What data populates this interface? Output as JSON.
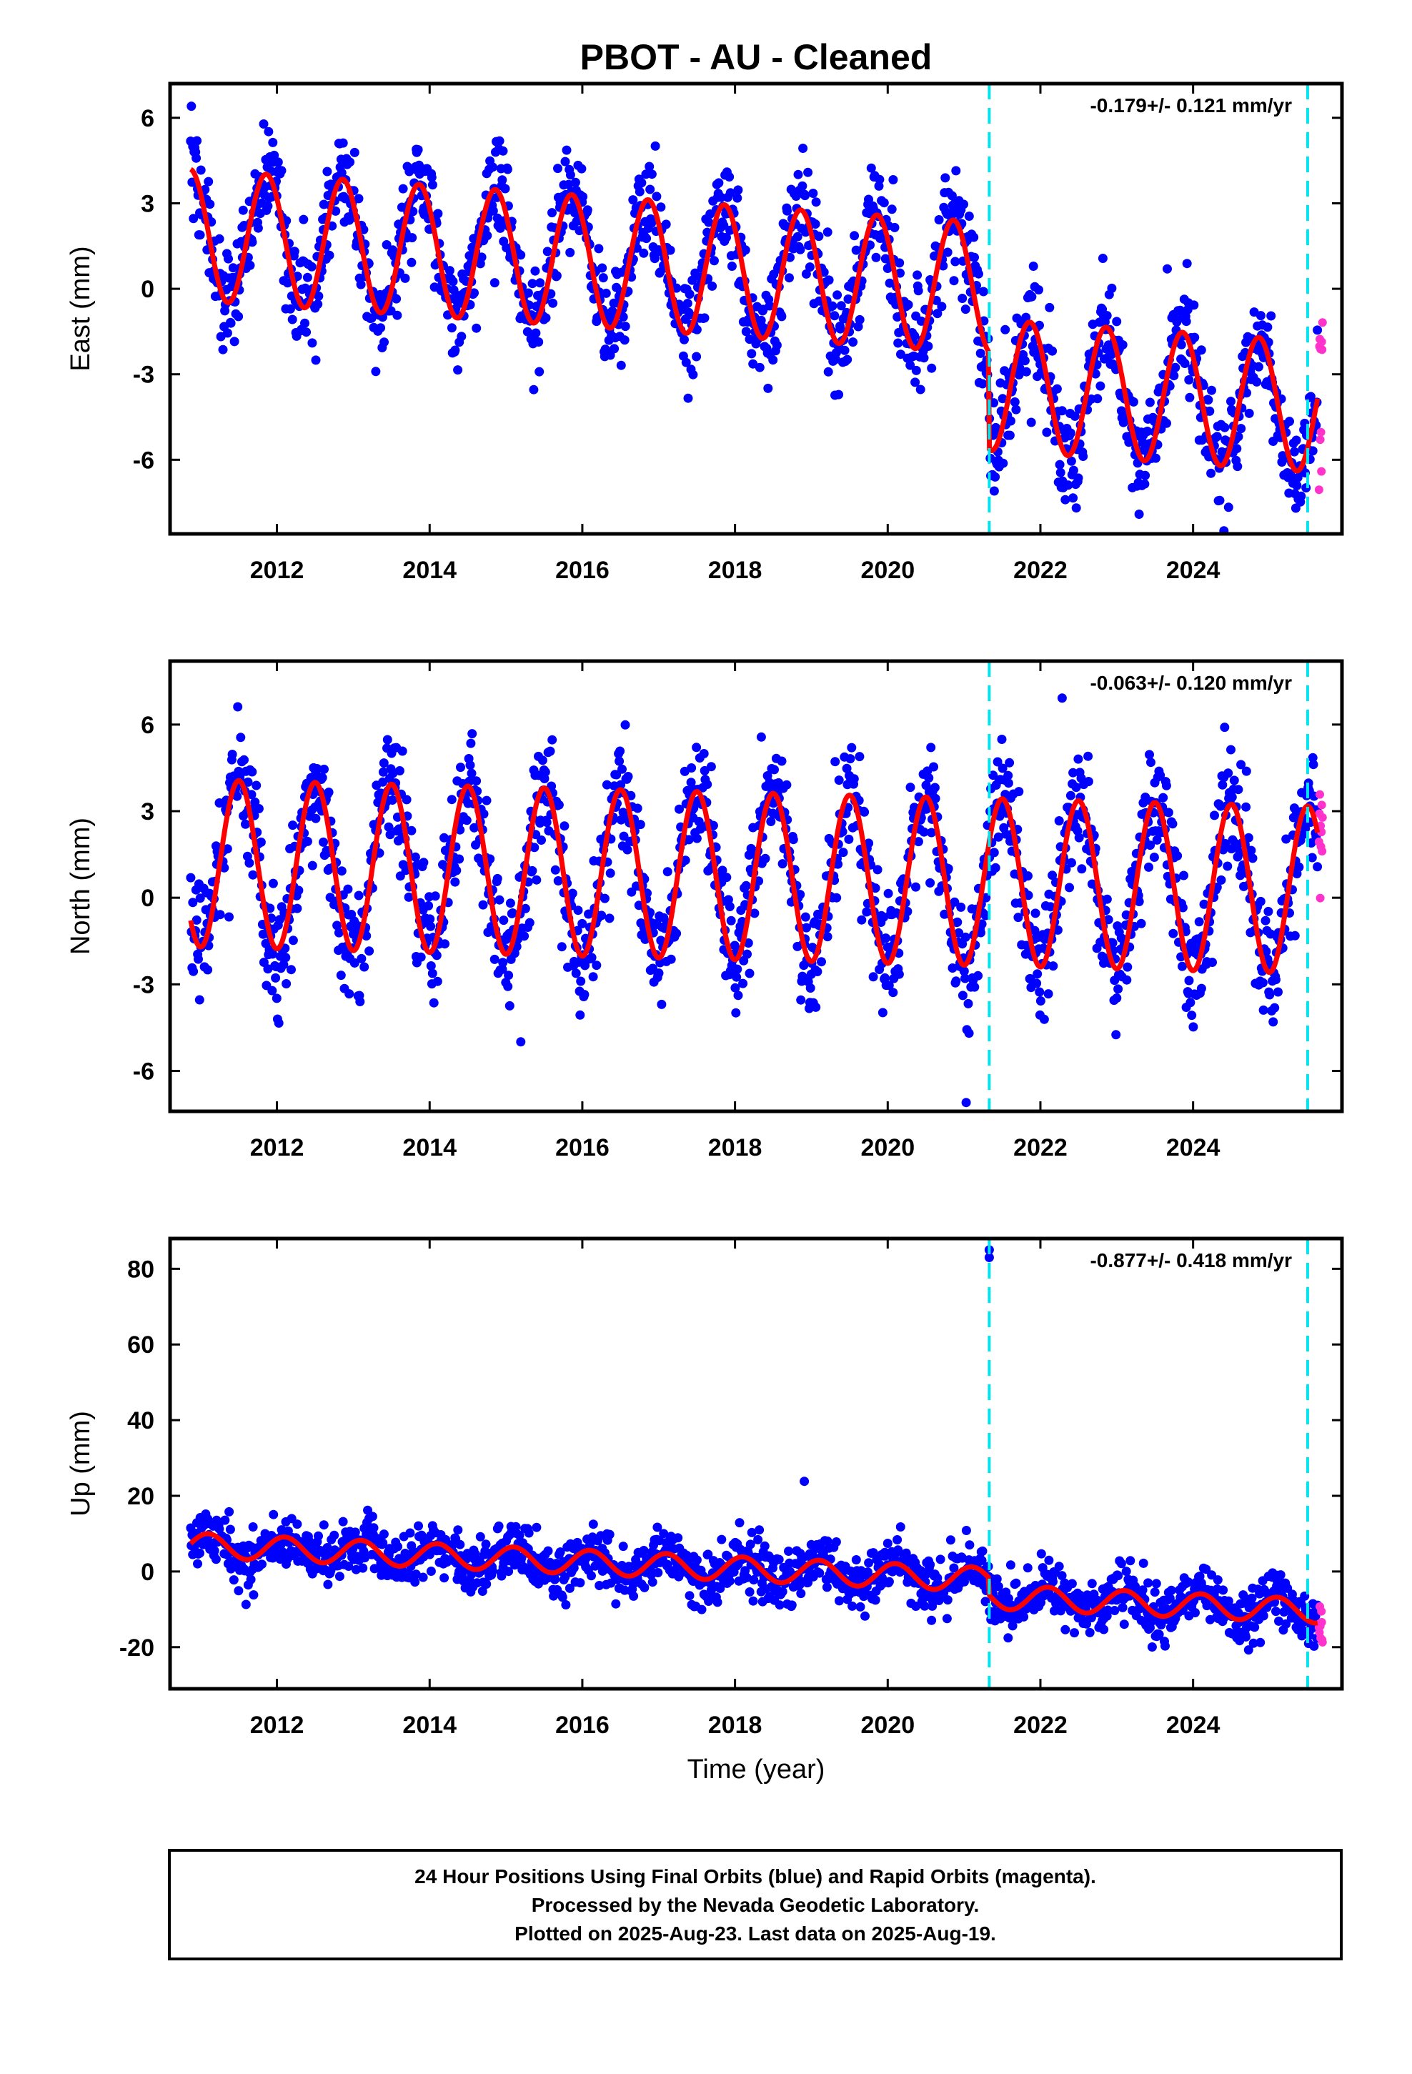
{
  "title": "PBOT  - AU - Cleaned",
  "colors": {
    "final_points": "#0000ff",
    "rapid_points": "#ff33cc",
    "model_line": "#ff0000",
    "offset_lines": "#00e5ee",
    "frame": "#000000"
  },
  "xlabel": "Time (year)",
  "footer": {
    "line1": "24 Hour Positions Using Final Orbits (blue) and Rapid Orbits (magenta).",
    "line2": "Processed by the Nevada Geodetic Laboratory.",
    "line3": "Plotted on 2025-Aug-23. Last data on 2025-Aug-19."
  },
  "chart_data": [
    {
      "type": "scatter",
      "component": "east",
      "ylabel": "East (mm)",
      "rate_text": "-0.179+/- 0.121 mm/yr",
      "xlim": [
        2010.6,
        2025.95
      ],
      "ylim": [
        -8.6,
        7.2
      ],
      "xticks": [
        2012,
        2014,
        2016,
        2018,
        2020,
        2022,
        2024
      ],
      "xtick_labels": [
        "2012",
        "2014",
        "2016",
        "2018",
        "2020",
        "2022",
        "2024"
      ],
      "yticks": [
        -6,
        -3,
        0,
        3,
        6
      ],
      "ytick_labels": [
        "-6",
        "-3",
        "0",
        "3",
        "6"
      ],
      "offset_epochs": [
        2021.33,
        2025.5
      ],
      "model": {
        "start": 2010.87,
        "end": 2025.63,
        "initial_offset": 1.9,
        "rate": -0.179,
        "amplitude": 2.3,
        "peak_phase": 0.86,
        "step_epoch": 2021.33,
        "step_size": -3.4
      },
      "scatter": {
        "final_noise": 0.9,
        "final_count": 1650,
        "rapid_count": 10
      }
    },
    {
      "type": "scatter",
      "component": "north",
      "ylabel": "North (mm)",
      "rate_text": "-0.063+/- 0.120 mm/yr",
      "xlim": [
        2010.6,
        2025.95
      ],
      "ylim": [
        -7.4,
        8.2
      ],
      "xticks": [
        2012,
        2014,
        2016,
        2018,
        2020,
        2022,
        2024
      ],
      "xtick_labels": [
        "2012",
        "2014",
        "2016",
        "2018",
        "2020",
        "2022",
        "2024"
      ],
      "yticks": [
        -6,
        -3,
        0,
        3,
        6
      ],
      "ytick_labels": [
        "-6",
        "-3",
        "0",
        "3",
        "6"
      ],
      "offset_epochs": [
        2021.33,
        2025.5
      ],
      "model": {
        "start": 2010.87,
        "end": 2025.63,
        "initial_offset": 1.2,
        "rate": -0.063,
        "amplitude": 2.9,
        "peak_phase": 0.5,
        "step_epoch": 2021.33,
        "step_size": 0.0
      },
      "scatter": {
        "final_noise": 1.0,
        "final_count": 1650,
        "rapid_count": 10
      }
    },
    {
      "type": "scatter",
      "component": "up",
      "ylabel": "Up (mm)",
      "rate_text": "-0.877+/- 0.418 mm/yr",
      "xlim": [
        2010.6,
        2025.95
      ],
      "ylim": [
        -31,
        88
      ],
      "xticks": [
        2012,
        2014,
        2016,
        2018,
        2020,
        2022,
        2024
      ],
      "xtick_labels": [
        "2012",
        "2014",
        "2016",
        "2018",
        "2020",
        "2022",
        "2024"
      ],
      "yticks": [
        -20,
        0,
        20,
        40,
        60,
        80
      ],
      "ytick_labels": [
        "-20",
        "0",
        "20",
        "40",
        "60",
        "80"
      ],
      "offset_epochs": [
        2021.33,
        2025.5
      ],
      "model": {
        "start": 2010.87,
        "end": 2025.63,
        "initial_offset": 7.0,
        "rate": -0.877,
        "amplitude": 3.2,
        "peak_phase": 0.1,
        "step_epoch": 2021.33,
        "step_size": -4.5
      },
      "scatter": {
        "final_noise": 3.4,
        "final_count": 1650,
        "rapid_count": 10
      },
      "outliers": [
        {
          "x": 2021.33,
          "y": 85
        },
        {
          "x": 2021.33,
          "y": 83
        }
      ]
    }
  ]
}
